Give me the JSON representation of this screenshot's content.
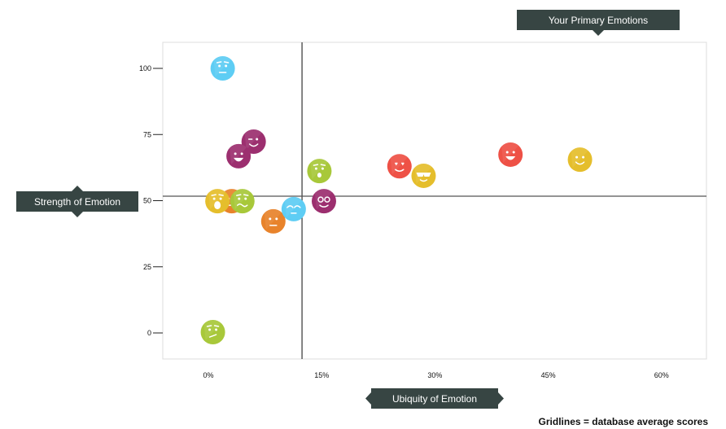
{
  "chart_data": {
    "type": "scatter",
    "title": "Your Primary Emotions",
    "xlabel": "Ubiquity of Emotion",
    "ylabel": "Strength of Emotion",
    "xlim": [
      -6,
      66
    ],
    "ylim": [
      -10,
      110
    ],
    "x_ticks": [
      0,
      15,
      30,
      45,
      60
    ],
    "x_tick_labels": [
      "0%",
      "15%",
      "30%",
      "45%",
      "60%"
    ],
    "y_ticks": [
      0,
      25,
      50,
      75,
      100
    ],
    "y_tick_labels": [
      "0",
      "25",
      "50",
      "75",
      "100"
    ],
    "gridlines": {
      "x": 12.4,
      "y": 51.7
    },
    "note": "Gridlines = database average scores",
    "points": [
      {
        "x": 1.9,
        "y": 100,
        "color": "#5ecdf4",
        "face": "worried"
      },
      {
        "x": 6.0,
        "y": 72.3,
        "color": "#9c2f6f",
        "face": "wink"
      },
      {
        "x": 4.0,
        "y": 66.8,
        "color": "#9c2f6f",
        "face": "laugh"
      },
      {
        "x": 14.7,
        "y": 61.2,
        "color": "#a8c83a",
        "face": "surprised"
      },
      {
        "x": 25.3,
        "y": 63.0,
        "color": "#ee5146",
        "face": "love"
      },
      {
        "x": 28.5,
        "y": 59.4,
        "color": "#e5be2c",
        "face": "cool"
      },
      {
        "x": 40.0,
        "y": 67.4,
        "color": "#ee5146",
        "face": "laugh"
      },
      {
        "x": 49.2,
        "y": 65.5,
        "color": "#e5be2c",
        "face": "smile"
      },
      {
        "x": 3.1,
        "y": 49.8,
        "color": "#e8832b",
        "face": "neutral"
      },
      {
        "x": 1.2,
        "y": 49.8,
        "color": "#e5be2c",
        "face": "shocked"
      },
      {
        "x": 4.5,
        "y": 49.8,
        "color": "#a8c83a",
        "face": "wavy"
      },
      {
        "x": 8.6,
        "y": 42.2,
        "color": "#e8832b",
        "face": "neutral"
      },
      {
        "x": 11.3,
        "y": 46.8,
        "color": "#5ecdf4",
        "face": "sleepy"
      },
      {
        "x": 15.3,
        "y": 49.8,
        "color": "#9c2f6f",
        "face": "glasses"
      },
      {
        "x": 0.6,
        "y": 0.3,
        "color": "#a8c83a",
        "face": "confused"
      }
    ]
  }
}
